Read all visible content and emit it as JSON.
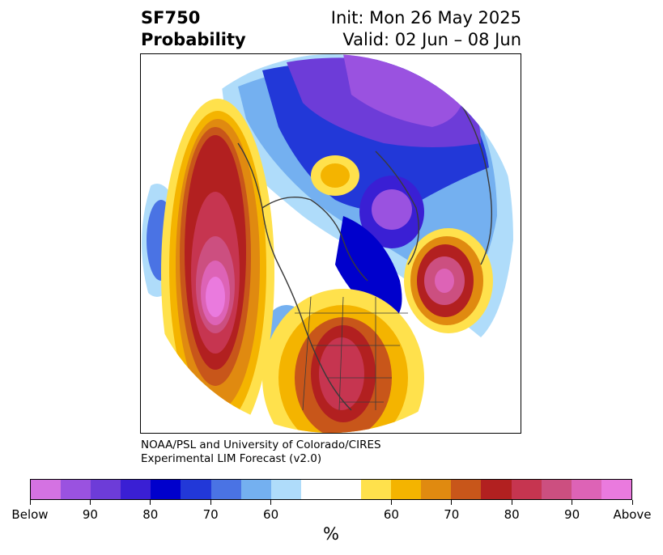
{
  "header": {
    "variable": "SF750",
    "field": "Probability",
    "init": "Init: Mon 26 May 2025",
    "valid": "Valid: 02 Jun – 08 Jun"
  },
  "credit": {
    "line1": "NOAA/PSL and University of Colorado/CIRES",
    "line2": "Experimental LIM Forecast (v2.0)"
  },
  "colorbar": {
    "colors": [
      "#d472e2",
      "#9a52e0",
      "#6d3cd8",
      "#3a1fd4",
      "#0000cc",
      "#2238d8",
      "#4a73e4",
      "#74b0f0",
      "#afdcfa",
      "#ffffff",
      "#ffe14c",
      "#f4b400",
      "#e08a10",
      "#c8561a",
      "#b22020",
      "#c63550",
      "#cc4f80",
      "#dd63b6",
      "#ea7ade"
    ],
    "labels": [
      "Below",
      "90",
      "80",
      "70",
      "60",
      "60",
      "70",
      "80",
      "90",
      "Above"
    ],
    "unit": "%"
  },
  "map": {
    "regions": [
      "probability-below-normal",
      "probability-above-normal"
    ]
  }
}
